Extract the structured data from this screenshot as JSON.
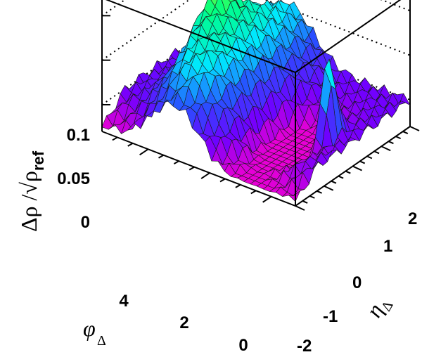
{
  "chart_data": {
    "type": "surface",
    "z_axis": {
      "label_prefix": "Δρ /√ρ",
      "label_subscript": "ref",
      "ticks": [
        "0",
        "0.05",
        "0.1"
      ],
      "tick_values": [
        0,
        0.05,
        0.1
      ],
      "range": [
        -0.03,
        0.12
      ]
    },
    "x_axis": {
      "label": "φ",
      "label_subscript": "Δ",
      "ticks": [
        "0",
        "2",
        "4"
      ],
      "tick_values": [
        0,
        2,
        4
      ],
      "range": [
        -0.785,
        5.5
      ]
    },
    "y_axis": {
      "label": "η",
      "label_subscript": "Δ",
      "ticks": [
        "-2",
        "-1",
        "0",
        "1",
        "2"
      ],
      "tick_values": [
        -2,
        -1,
        0,
        1,
        2
      ],
      "range": [
        -2,
        2
      ]
    },
    "grid": "dotted lines on back walls at z ticks",
    "colormap": [
      "#ff00cc",
      "#7000ff",
      "#2850ff",
      "#00e8ff",
      "#00ff80",
      "#d0ff00"
    ],
    "features": {
      "away_side_ridge_peak": 0.1,
      "same_side_peak_height": 0.11,
      "near_side_trough_min": -0.025,
      "flat_level": 0.0
    }
  }
}
